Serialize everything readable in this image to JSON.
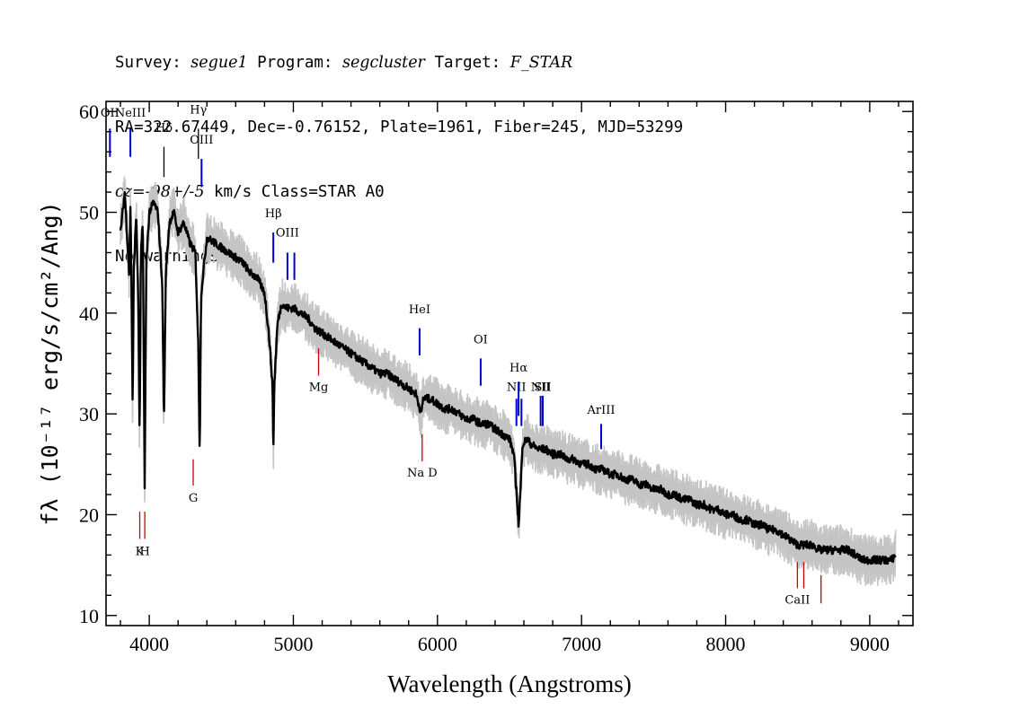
{
  "header": {
    "survey_label": "Survey: ",
    "survey": "segue1",
    "program_label": " Program: ",
    "program": "segcluster",
    "target_label": " Target: ",
    "target": "F_STAR",
    "line2": "RA=322.67449, Dec=-0.76152, Plate=1961, Fiber=245, MJD=53299",
    "cz_label": "cz",
    "cz_value": "=-98+/-5",
    "line3_rest": " km/s Class=STAR A0",
    "line4": "No warnings."
  },
  "chart_data": {
    "type": "line",
    "xlabel": "Wavelength (Angstroms)",
    "ylabel": "fλ (10⁻¹⁷ erg/s/cm²/Ang)",
    "xlim": [
      3700,
      9300
    ],
    "ylim": [
      9,
      61
    ],
    "x_ticks": [
      4000,
      5000,
      6000,
      7000,
      8000,
      9000
    ],
    "y_ticks": [
      10,
      20,
      30,
      40,
      50,
      60
    ],
    "series": [
      {
        "color": "#000000",
        "points": [
          [
            3800,
            48
          ],
          [
            3830,
            52
          ],
          [
            3860,
            44
          ],
          [
            3870,
            51
          ],
          [
            3880,
            38
          ],
          [
            3885,
            30
          ],
          [
            3892,
            44
          ],
          [
            3910,
            50
          ],
          [
            3925,
            40
          ],
          [
            3933,
            27
          ],
          [
            3942,
            46
          ],
          [
            3955,
            49
          ],
          [
            3968,
            23
          ],
          [
            3980,
            45
          ],
          [
            4000,
            50
          ],
          [
            4030,
            51
          ],
          [
            4060,
            50
          ],
          [
            4090,
            43
          ],
          [
            4102,
            29
          ],
          [
            4115,
            44
          ],
          [
            4140,
            49
          ],
          [
            4170,
            50
          ],
          [
            4200,
            48
          ],
          [
            4240,
            49
          ],
          [
            4280,
            47
          ],
          [
            4320,
            46
          ],
          [
            4340,
            37
          ],
          [
            4350,
            26
          ],
          [
            4360,
            42
          ],
          [
            4400,
            47.5
          ],
          [
            4450,
            47
          ],
          [
            4500,
            46.5
          ],
          [
            4550,
            46
          ],
          [
            4600,
            45.5
          ],
          [
            4650,
            45
          ],
          [
            4700,
            44
          ],
          [
            4750,
            43.5
          ],
          [
            4800,
            42
          ],
          [
            4830,
            38
          ],
          [
            4855,
            33
          ],
          [
            4861,
            26
          ],
          [
            4868,
            33
          ],
          [
            4890,
            39
          ],
          [
            4920,
            41
          ],
          [
            4950,
            40.5
          ],
          [
            5000,
            40.5
          ],
          [
            5050,
            40
          ],
          [
            5100,
            39.5
          ],
          [
            5150,
            38.5
          ],
          [
            5200,
            38
          ],
          [
            5250,
            37.5
          ],
          [
            5300,
            37
          ],
          [
            5350,
            36.5
          ],
          [
            5400,
            36
          ],
          [
            5450,
            35.5
          ],
          [
            5500,
            35
          ],
          [
            5550,
            34.5
          ],
          [
            5600,
            34
          ],
          [
            5650,
            34
          ],
          [
            5700,
            33.5
          ],
          [
            5750,
            33
          ],
          [
            5800,
            32.5
          ],
          [
            5850,
            32
          ],
          [
            5889,
            30
          ],
          [
            5900,
            31.5
          ],
          [
            5950,
            31.5
          ],
          [
            6000,
            31
          ],
          [
            6050,
            30.5
          ],
          [
            6100,
            30.5
          ],
          [
            6150,
            30
          ],
          [
            6200,
            29.5
          ],
          [
            6250,
            29.5
          ],
          [
            6300,
            29
          ],
          [
            6350,
            29
          ],
          [
            6400,
            28.5
          ],
          [
            6450,
            28
          ],
          [
            6500,
            27.5
          ],
          [
            6530,
            26
          ],
          [
            6550,
            22
          ],
          [
            6563,
            19
          ],
          [
            6575,
            22
          ],
          [
            6590,
            27
          ],
          [
            6620,
            27.5
          ],
          [
            6650,
            27
          ],
          [
            6700,
            26.5
          ],
          [
            6750,
            26.5
          ],
          [
            6800,
            26
          ],
          [
            6850,
            26
          ],
          [
            6900,
            25.5
          ],
          [
            6950,
            25.5
          ],
          [
            7000,
            25
          ],
          [
            7050,
            25
          ],
          [
            7100,
            24.5
          ],
          [
            7150,
            24.5
          ],
          [
            7200,
            24
          ],
          [
            7250,
            24
          ],
          [
            7300,
            23.5
          ],
          [
            7350,
            23.5
          ],
          [
            7400,
            23
          ],
          [
            7450,
            23
          ],
          [
            7500,
            22.5
          ],
          [
            7550,
            22.5
          ],
          [
            7600,
            22
          ],
          [
            7650,
            22
          ],
          [
            7700,
            21.5
          ],
          [
            7750,
            21.5
          ],
          [
            7800,
            21
          ],
          [
            7850,
            21
          ],
          [
            7900,
            20.5
          ],
          [
            7950,
            20.5
          ],
          [
            8000,
            20
          ],
          [
            8050,
            20
          ],
          [
            8100,
            19.5
          ],
          [
            8150,
            19.5
          ],
          [
            8200,
            19
          ],
          [
            8250,
            19
          ],
          [
            8300,
            18.5
          ],
          [
            8350,
            18.5
          ],
          [
            8400,
            18
          ],
          [
            8450,
            17.5
          ],
          [
            8500,
            17
          ],
          [
            8550,
            17
          ],
          [
            8600,
            17
          ],
          [
            8650,
            16.5
          ],
          [
            8700,
            16.5
          ],
          [
            8750,
            16.5
          ],
          [
            8800,
            16.5
          ],
          [
            8850,
            16.5
          ],
          [
            8900,
            16
          ],
          [
            8950,
            15.5
          ],
          [
            9000,
            15.5
          ],
          [
            9050,
            15.5
          ],
          [
            9100,
            15.5
          ],
          [
            9150,
            15.5
          ],
          [
            9180,
            16
          ]
        ]
      }
    ],
    "emission_lines": [
      {
        "label": "OII",
        "x": 3727,
        "y_top": 58.3,
        "y_bot": 55.5,
        "label_y": 59.5,
        "color": "#0000cc"
      },
      {
        "label": "NeIII",
        "x": 3869,
        "y_top": 58.3,
        "y_bot": 55.5,
        "label_y": 59.5,
        "color": "#0000cc"
      },
      {
        "label": "Hδ",
        "x": 4102,
        "y_top": 56.5,
        "y_bot": 53.5,
        "label_y": 58.0,
        "color": "#000000"
      },
      {
        "label": "Hγ",
        "x": 4341,
        "y_top": 58.3,
        "y_bot": 55.3,
        "label_y": 59.8,
        "color": "#000000"
      },
      {
        "label": "OIII",
        "x": 4363,
        "y_top": 55.3,
        "y_bot": 52.5,
        "label_y": 56.8,
        "color": "#0000cc"
      },
      {
        "label": "Hβ",
        "x": 4861,
        "y_top": 48.0,
        "y_bot": 45.0,
        "label_y": 49.5,
        "color": "#0000cc"
      },
      {
        "label": "OIII",
        "x": 4959,
        "y_top": 46.0,
        "y_bot": 43.3,
        "label_y": 47.6,
        "color": "#0000cc"
      },
      {
        "label": "",
        "x": 5007,
        "y_top": 46.0,
        "y_bot": 43.3,
        "label_y": 47.6,
        "color": "#0000cc"
      },
      {
        "label": "HeI",
        "x": 5876,
        "y_top": 38.5,
        "y_bot": 35.8,
        "label_y": 40.0,
        "color": "#0000cc"
      },
      {
        "label": "OI",
        "x": 6300,
        "y_top": 35.5,
        "y_bot": 32.8,
        "label_y": 37.0,
        "color": "#0000cc"
      },
      {
        "label": "NII",
        "x": 6548,
        "y_top": 31.5,
        "y_bot": 28.8,
        "label_y": 32.3,
        "color": "#0000cc"
      },
      {
        "label": "Hα",
        "x": 6563,
        "y_top": 33.2,
        "y_bot": 29.8,
        "label_y": 34.2,
        "color": "#0000cc"
      },
      {
        "label": "",
        "x": 6583,
        "y_top": 31.5,
        "y_bot": 28.8,
        "label_y": 32.3,
        "color": "#0000cc"
      },
      {
        "label": "NII",
        "x": 6716,
        "y_top": 31.8,
        "y_bot": 28.8,
        "label_y": 32.3,
        "color": "#0000cc"
      },
      {
        "label": "SII",
        "x": 6731,
        "y_top": 31.8,
        "y_bot": 28.8,
        "label_y": 32.3,
        "color": "#0000cc"
      },
      {
        "label": "ArIII",
        "x": 7136,
        "y_top": 29.0,
        "y_bot": 26.5,
        "label_y": 30.0,
        "color": "#0000cc"
      }
    ],
    "absorption_lines": [
      {
        "label": "K",
        "x": 3934,
        "y_top": 20.3,
        "y_bot": 17.6,
        "label_y": 16.0,
        "color": "#cc0000"
      },
      {
        "label": "H",
        "x": 3969,
        "y_top": 20.3,
        "y_bot": 17.6,
        "label_y": 16.0,
        "color": "#cc0000"
      },
      {
        "label": "G",
        "x": 4305,
        "y_top": 25.5,
        "y_bot": 22.9,
        "label_y": 21.3,
        "color": "#cc0000"
      },
      {
        "label": "Mg",
        "x": 5175,
        "y_top": 36.5,
        "y_bot": 33.8,
        "label_y": 32.3,
        "color": "#cc0000"
      },
      {
        "label": "Na D",
        "x": 5894,
        "y_top": 28.0,
        "y_bot": 25.3,
        "label_y": 23.8,
        "color": "#cc0000"
      },
      {
        "label": "CaII",
        "x": 8498,
        "y_top": 15.3,
        "y_bot": 12.7,
        "label_y": 11.2,
        "color": "#cc0000"
      },
      {
        "label": "",
        "x": 8542,
        "y_top": 15.3,
        "y_bot": 12.7,
        "label_y": 11.2,
        "color": "#cc0000"
      },
      {
        "label": "",
        "x": 8662,
        "y_top": 14.0,
        "y_bot": 11.2,
        "label_y": 11.2,
        "color": "#cc0000"
      }
    ]
  }
}
